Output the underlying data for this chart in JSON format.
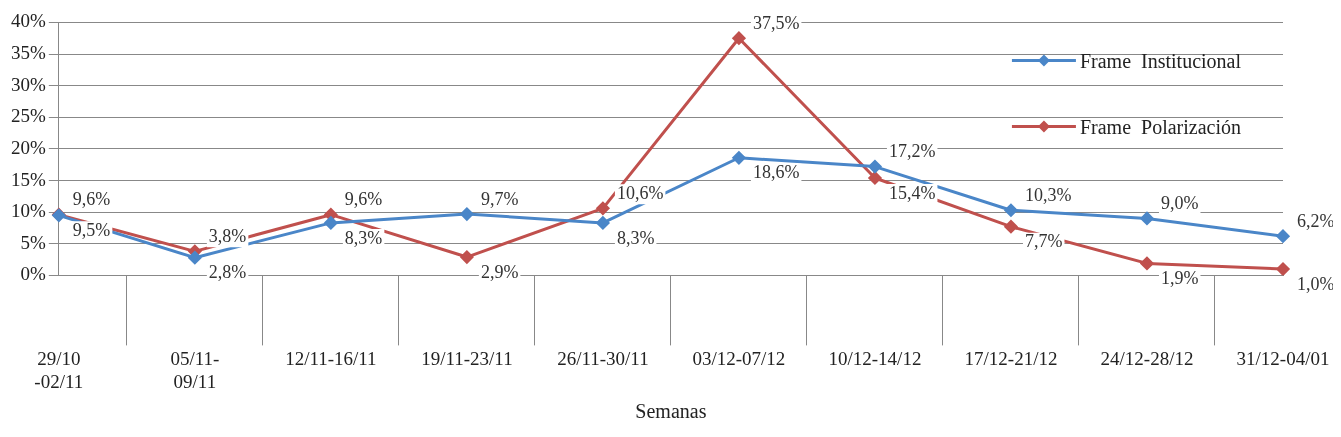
{
  "chart_data": {
    "type": "line",
    "xlabel": "Semanas",
    "categories": [
      "29/10 -02/11",
      "05/11- 09/11",
      "12/11-16/11",
      "19/11-23/11",
      "26/11-30/11",
      "03/12-07/12",
      "10/12-14/12",
      "17/12-21/12",
      "24/12-28/12",
      "31/12-04/01"
    ],
    "series": [
      {
        "name": "Frame  Institucional",
        "color": "#4a86c8",
        "values": [
          9.5,
          2.8,
          8.3,
          9.7,
          8.3,
          18.6,
          17.2,
          10.3,
          9.0,
          6.2
        ],
        "value_labels": [
          "9,5%",
          "2,8%",
          "8,3%",
          "9,7%",
          "8,3%",
          "18,6%",
          "17,2%",
          "10,3%",
          "9,0%",
          "6,2%"
        ]
      },
      {
        "name": "Frame  Polarización",
        "color": "#c0504d",
        "values": [
          9.6,
          3.8,
          9.6,
          2.9,
          10.6,
          37.5,
          15.4,
          7.7,
          1.9,
          1.0
        ],
        "value_labels": [
          "9,6%",
          "3,8%",
          "9,6%",
          "2,9%",
          "10,6%",
          "37,5%",
          "15,4%",
          "7,7%",
          "1,9%",
          "1,0%"
        ]
      }
    ],
    "ylim": [
      0,
      40
    ],
    "yticks": [
      {
        "value": 0,
        "label": "0%"
      },
      {
        "value": 5,
        "label": "5%"
      },
      {
        "value": 10,
        "label": "10%"
      },
      {
        "value": 15,
        "label": "15%"
      },
      {
        "value": 20,
        "label": "20%"
      },
      {
        "value": 25,
        "label": "25%"
      },
      {
        "value": 30,
        "label": "30%"
      },
      {
        "value": 35,
        "label": "35%"
      },
      {
        "value": 40,
        "label": "40%"
      }
    ],
    "grid": "y",
    "legend": "top right",
    "marker": "diamond",
    "line_style": "solid"
  }
}
